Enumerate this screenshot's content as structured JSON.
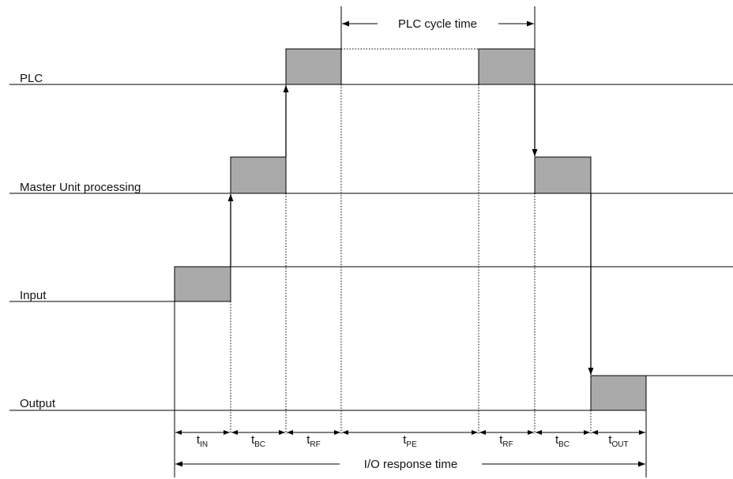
{
  "rows": {
    "plc": "PLC",
    "master": "Master Unit processing",
    "input": "Input",
    "output": "Output"
  },
  "cycle_label": "PLC cycle time",
  "response_label": "I/O response time",
  "segments": [
    {
      "t": "t",
      "sub": "IN"
    },
    {
      "t": "t",
      "sub": "BC"
    },
    {
      "t": "t",
      "sub": "RF"
    },
    {
      "t": "t",
      "sub": "PE"
    },
    {
      "t": "t",
      "sub": "RF"
    },
    {
      "t": "t",
      "sub": "BC"
    },
    {
      "t": "t",
      "sub": "OUT"
    }
  ],
  "colors": {
    "block_fill": "#aaaaaa",
    "line": "#000000"
  }
}
